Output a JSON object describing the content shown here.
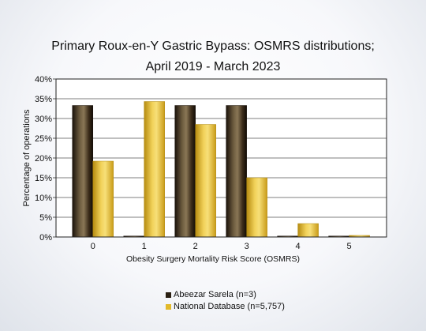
{
  "chart_data": {
    "type": "bar",
    "title_lines": [
      "Primary Roux-en-Y Gastric Bypass: OSMRS distributions;",
      "April 2019 - March 2023"
    ],
    "xlabel": "Obesity Surgery Mortality Risk Score (OSMRS)",
    "ylabel": "Percentage of operations",
    "categories": [
      "0",
      "1",
      "2",
      "3",
      "4",
      "5"
    ],
    "y_ticks": [
      "0%",
      "5%",
      "10%",
      "15%",
      "20%",
      "25%",
      "30%",
      "35%",
      "40%"
    ],
    "ylim": [
      0,
      40
    ],
    "grid": true,
    "legend_position": "bottom",
    "series": [
      {
        "name": "Abeezar Sarela (n=3)",
        "color": "#2a1f12",
        "values": [
          33.3,
          0,
          33.3,
          33.3,
          0,
          0
        ]
      },
      {
        "name": "National Database (n=5,757)",
        "color": "#e2b92a",
        "values": [
          19.2,
          34.3,
          28.5,
          15.0,
          3.4,
          0.4
        ]
      }
    ]
  }
}
